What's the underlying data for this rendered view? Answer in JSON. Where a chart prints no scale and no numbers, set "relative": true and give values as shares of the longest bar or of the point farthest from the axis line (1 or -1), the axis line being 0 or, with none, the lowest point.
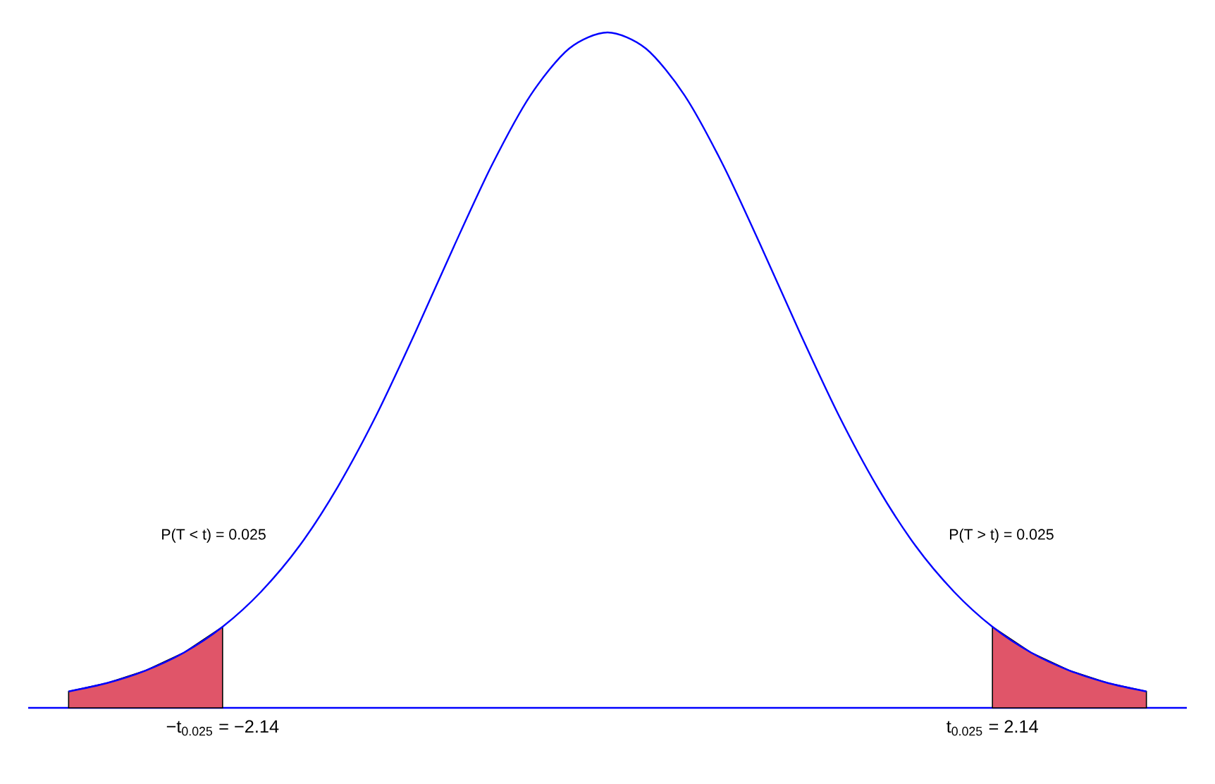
{
  "chart_data": {
    "type": "line",
    "relative": true,
    "categories": [
      null,
      null,
      null,
      null,
      null,
      null,
      null,
      null,
      null,
      null,
      null,
      null,
      null,
      null,
      null,
      null,
      null,
      null,
      null,
      null,
      null,
      null,
      null,
      null,
      null,
      null,
      null,
      null,
      null
    ],
    "series": [
      {
        "type": "area",
        "color": "#e05569",
        "values": [
          0.0243,
          0.0368,
          0.0553,
          0.082,
          0.12,
          null,
          null,
          null,
          null,
          null,
          null,
          null,
          null,
          null,
          null,
          null,
          null,
          null,
          null,
          null,
          null,
          null,
          null,
          null,
          null,
          null,
          null,
          null,
          null
        ]
      },
      {
        "type": "area",
        "color": "#e05569",
        "values": [
          null,
          null,
          null,
          null,
          null,
          null,
          null,
          null,
          null,
          null,
          null,
          null,
          null,
          null,
          null,
          null,
          null,
          null,
          null,
          null,
          null,
          null,
          null,
          null,
          0.12,
          0.082,
          0.0553,
          0.0368,
          0.0243
        ]
      },
      {
        "color": "#0000ff",
        "values": [
          0.0243,
          0.0368,
          0.0553,
          0.082,
          0.12,
          0.172,
          0.24,
          0.328,
          0.434,
          0.555,
          0.682,
          0.804,
          0.907,
          0.976,
          1,
          0.976,
          0.907,
          0.804,
          0.682,
          0.555,
          0.434,
          0.328,
          0.24,
          0.172,
          0.12,
          0.082,
          0.0553,
          0.0368,
          0.0243
        ]
      }
    ],
    "annotations": [
      "P(T < t) = 0.025",
      "P(T > t) = 0.025",
      "−t$_{0.025}$ = −2.14",
      "t$_{0.025}$ = 2.14"
    ]
  }
}
